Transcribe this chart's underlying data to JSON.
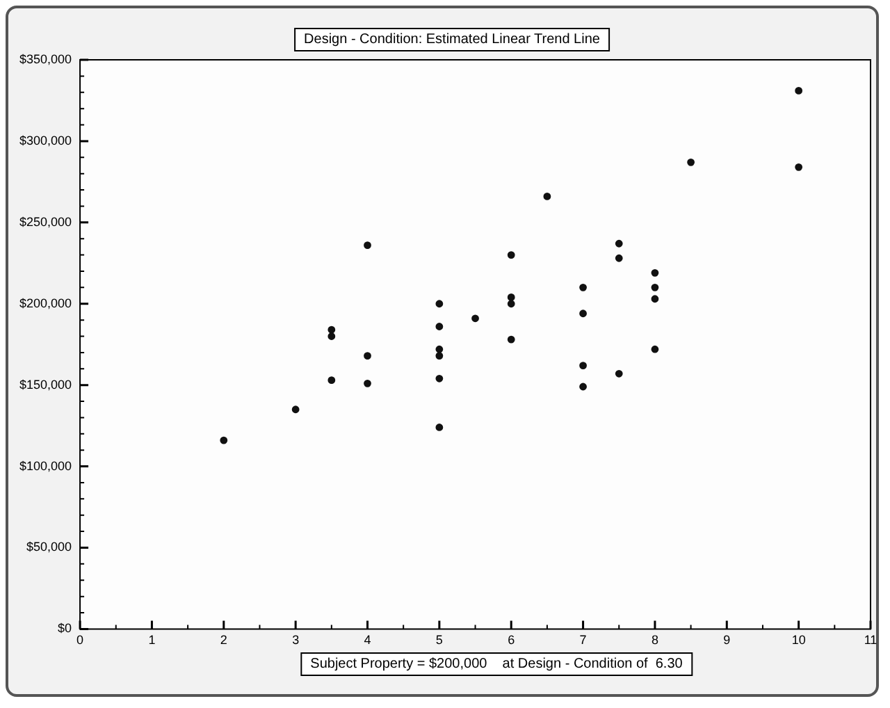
{
  "chart_data": {
    "type": "scatter",
    "title": "Design - Condition: Estimated Linear Trend Line",
    "x": [
      2,
      3,
      3.5,
      3.5,
      3.5,
      4,
      4,
      4,
      5,
      5,
      5,
      5,
      5,
      5,
      5.5,
      6,
      6,
      6,
      6,
      6.5,
      7,
      7,
      7,
      7,
      7.5,
      7.5,
      7.5,
      8,
      8,
      8,
      8,
      8.5,
      10,
      10
    ],
    "values": [
      116000,
      135000,
      184000,
      180000,
      153000,
      236000,
      168000,
      151000,
      200000,
      186000,
      172000,
      168000,
      154000,
      124000,
      191000,
      230000,
      204000,
      200000,
      178000,
      266000,
      210000,
      194000,
      162000,
      149000,
      237000,
      228000,
      157000,
      219000,
      210000,
      203000,
      172000,
      287000,
      331000,
      284000
    ],
    "color": "#111111",
    "marker": "circle",
    "xlim": [
      0,
      11
    ],
    "xticks": [
      0,
      1,
      2,
      3,
      4,
      5,
      6,
      7,
      8,
      9,
      10,
      11
    ],
    "ylim": [
      0,
      350000
    ],
    "yticks": [
      {
        "value": 0,
        "label": "$0"
      },
      {
        "value": 50000,
        "label": "$50,000"
      },
      {
        "value": 100000,
        "label": "$100,000"
      },
      {
        "value": 150000,
        "label": "$150,000"
      },
      {
        "value": 200000,
        "label": "$200,000"
      },
      {
        "value": 250000,
        "label": "$250,000"
      },
      {
        "value": 300000,
        "label": "$300,000"
      },
      {
        "value": 350000,
        "label": "$350,000"
      }
    ],
    "grid": false,
    "legend": false,
    "annotations": [
      "Subject Property = $200,000    at Design - Condition of  6.30"
    ]
  }
}
